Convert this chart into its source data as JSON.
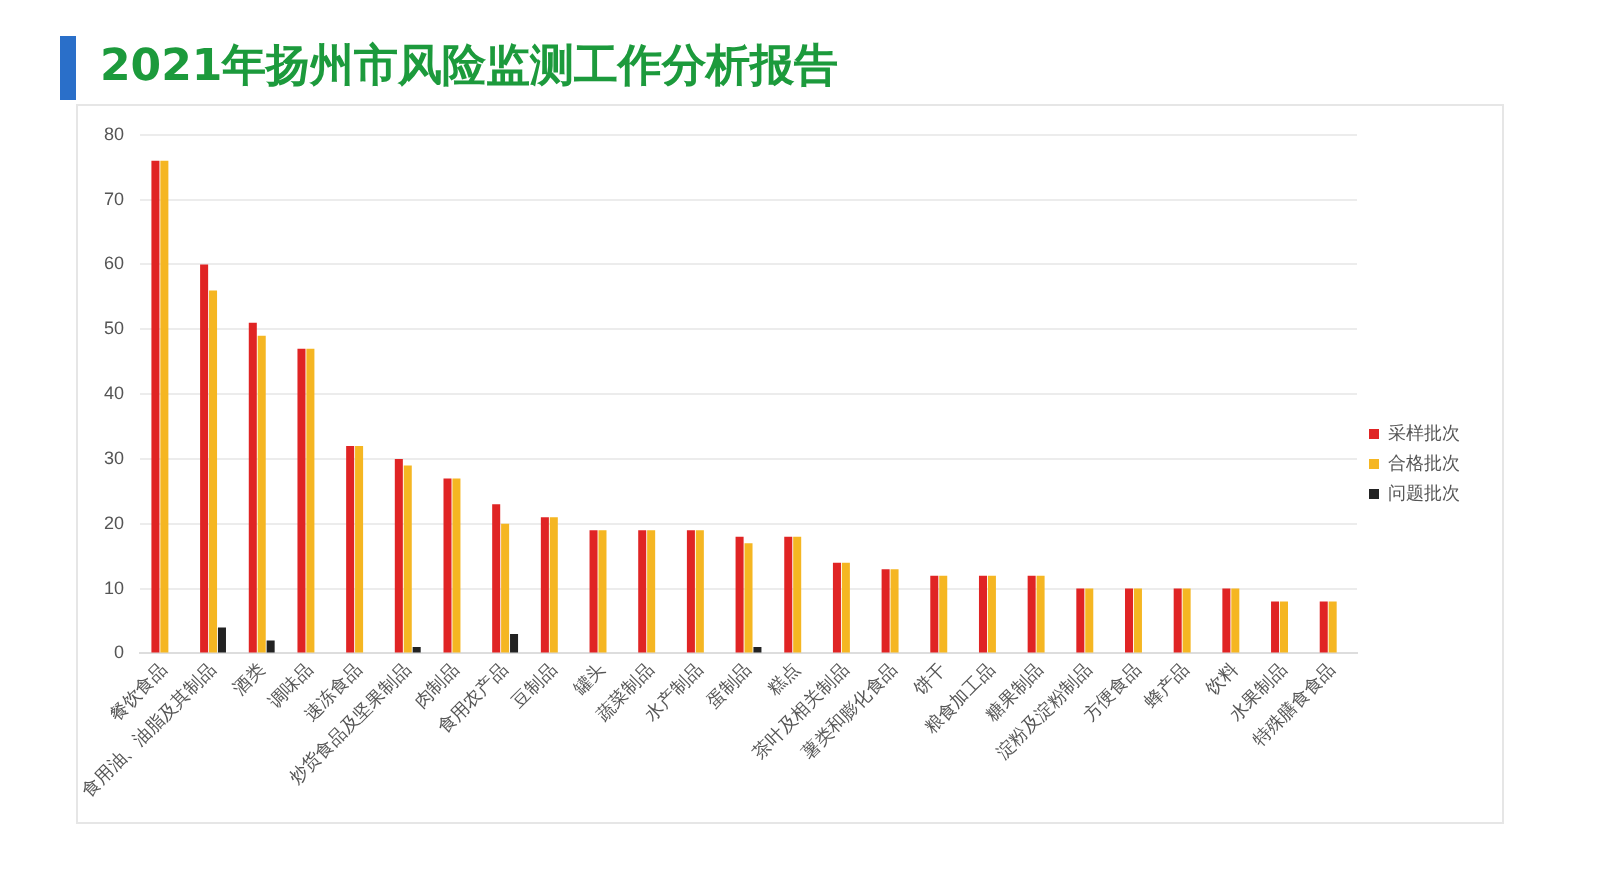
{
  "chart_data": {
    "type": "bar",
    "title": "2021年扬州市风险监测工作分析报告",
    "categories": [
      "餐饮食品",
      "食用油、油脂及其制品",
      "酒类",
      "调味品",
      "速冻食品",
      "炒货食品及坚果制品",
      "肉制品",
      "食用农产品",
      "豆制品",
      "罐头",
      "蔬菜制品",
      "水产制品",
      "蛋制品",
      "糕点",
      "茶叶及相关制品",
      "薯类和膨化食品",
      "饼干",
      "粮食加工品",
      "糖果制品",
      "淀粉及淀粉制品",
      "方便食品",
      "蜂产品",
      "饮料",
      "水果制品",
      "特殊膳食食品"
    ],
    "series": [
      {
        "name": "采样批次",
        "color": "#e02424",
        "values": [
          76,
          60,
          51,
          47,
          32,
          30,
          27,
          23,
          21,
          19,
          19,
          19,
          18,
          18,
          14,
          13,
          12,
          12,
          12,
          10,
          10,
          10,
          10,
          8,
          8
        ]
      },
      {
        "name": "合格批次",
        "color": "#f5b622",
        "values": [
          76,
          56,
          49,
          47,
          32,
          29,
          27,
          20,
          21,
          19,
          19,
          19,
          17,
          18,
          14,
          13,
          12,
          12,
          12,
          10,
          10,
          10,
          10,
          8,
          8
        ]
      },
      {
        "name": "问题批次",
        "color": "#222222",
        "values": [
          0,
          4,
          2,
          0,
          0,
          1,
          0,
          3,
          0,
          0,
          0,
          0,
          1,
          0,
          0,
          0,
          0,
          0,
          0,
          0,
          0,
          0,
          0,
          0,
          0
        ]
      }
    ],
    "ylim": [
      0,
      80
    ],
    "yticks": [
      0,
      10,
      20,
      30,
      40,
      50,
      60,
      70,
      80
    ],
    "grid": "y",
    "legend": "right"
  }
}
